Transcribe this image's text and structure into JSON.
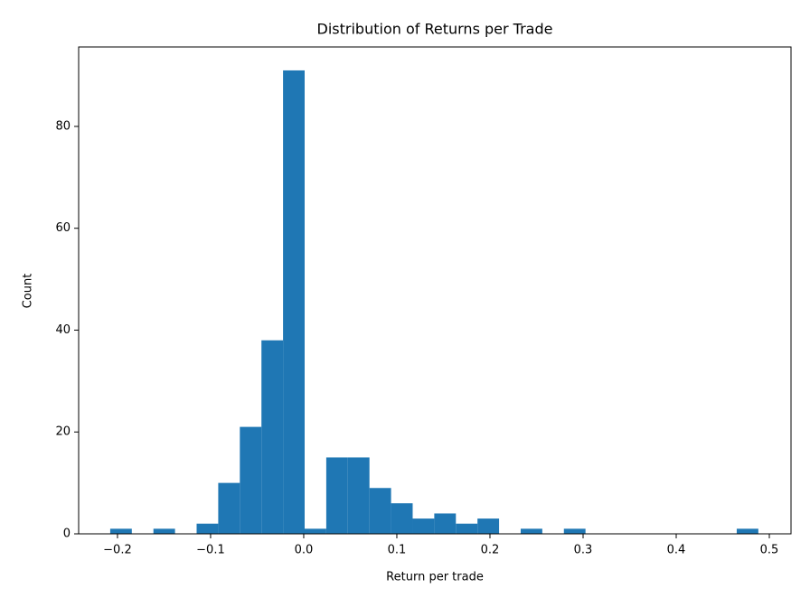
{
  "chart_data": {
    "type": "histogram",
    "title": "Distribution of Returns per Trade",
    "x_label": "Return per trade",
    "y_label": "Count",
    "color": "#1f77b4",
    "bins": [
      -0.2078,
      -0.1846,
      -0.1614,
      -0.1382,
      -0.115,
      -0.0918,
      -0.0686,
      -0.0454,
      -0.0222,
      0.001,
      0.0242,
      0.0474,
      0.0706,
      0.0938,
      0.117,
      0.1402,
      0.1634,
      0.1866,
      0.2098,
      0.233,
      0.2562,
      0.2794,
      0.3026,
      0.3258,
      0.349,
      0.3722,
      0.3954,
      0.4186,
      0.4418,
      0.465,
      0.4882
    ],
    "counts": [
      1,
      0,
      1,
      0,
      2,
      10,
      21,
      38,
      91,
      1,
      15,
      15,
      9,
      6,
      3,
      4,
      2,
      3,
      0,
      1,
      0,
      1,
      0,
      0,
      0,
      0,
      0,
      0,
      0,
      1
    ],
    "xlim": [
      -0.2417,
      0.5233
    ],
    "ylim": [
      0,
      95.6
    ],
    "xticks": [
      {
        "value": -0.2,
        "label": "−0.2"
      },
      {
        "value": -0.1,
        "label": "−0.1"
      },
      {
        "value": 0,
        "label": "0.0"
      },
      0.1,
      0.2,
      0.3,
      0.4,
      0.5
    ],
    "yticks": [
      0,
      20,
      40,
      60,
      80
    ],
    "grid": false
  }
}
